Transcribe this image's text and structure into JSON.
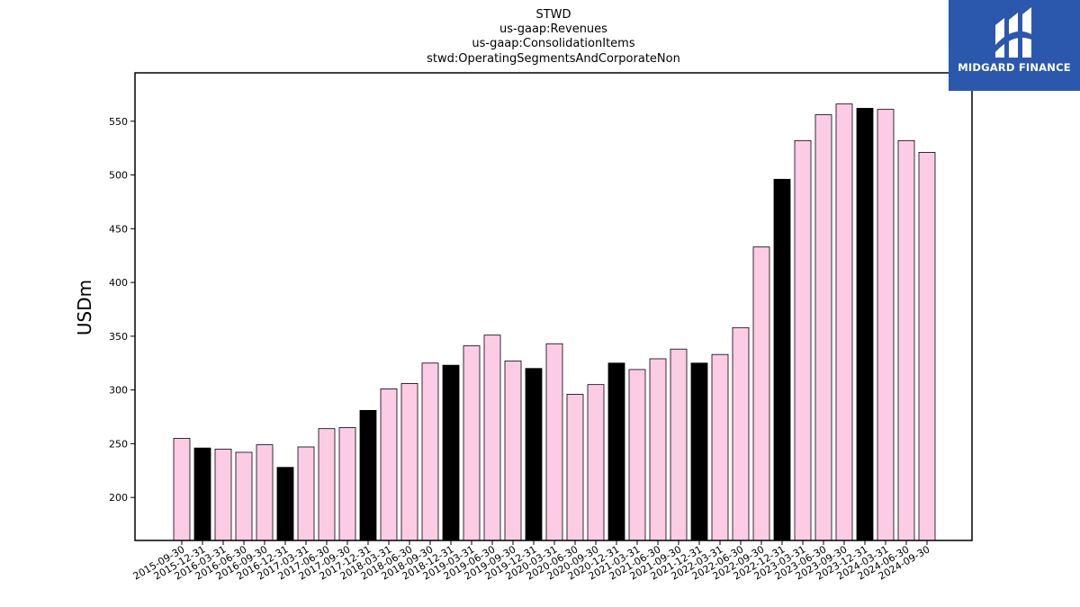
{
  "brand": {
    "name": "MIDGARD FINANCE",
    "logo_color": "#2b58ad"
  },
  "colors": {
    "regular_bar": "#fccce5",
    "highlight_bar": "#000000",
    "bar_edge": "#000000"
  },
  "chart_data": {
    "type": "bar",
    "title_lines": [
      "STWD",
      "us-gaap:Revenues",
      "us-gaap:ConsolidationItems",
      "stwd:OperatingSegmentsAndCorporateNon"
    ],
    "xlabel": "",
    "ylabel": "USDm",
    "ylim": [
      160,
      595
    ],
    "yticks": [
      200,
      250,
      300,
      350,
      400,
      450,
      500,
      550
    ],
    "grid": false,
    "categories": [
      "2015-09-30",
      "2015-12-31",
      "2016-03-31",
      "2016-06-30",
      "2016-09-30",
      "2016-12-31",
      "2017-03-31",
      "2017-06-30",
      "2017-09-30",
      "2017-12-31",
      "2018-03-31",
      "2018-06-30",
      "2018-09-30",
      "2018-12-31",
      "2019-03-31",
      "2019-06-30",
      "2019-09-30",
      "2019-12-31",
      "2020-03-31",
      "2020-06-30",
      "2020-09-30",
      "2020-12-31",
      "2021-03-31",
      "2021-06-30",
      "2021-09-30",
      "2021-12-31",
      "2022-03-31",
      "2022-06-30",
      "2022-09-30",
      "2022-12-31",
      "2023-03-31",
      "2023-06-30",
      "2023-09-30",
      "2023-12-31",
      "2024-03-31",
      "2024-06-30",
      "2024-09-30"
    ],
    "values": [
      255,
      246,
      245,
      242,
      249,
      228,
      247,
      264,
      265,
      281,
      301,
      306,
      325,
      323,
      341,
      351,
      327,
      320,
      343,
      296,
      305,
      325,
      319,
      329,
      338,
      325,
      333,
      358,
      433,
      496,
      532,
      556,
      566,
      562,
      561,
      532,
      521
    ],
    "highlight_categories": [
      "2015-12-31",
      "2016-12-31",
      "2017-12-31",
      "2018-12-31",
      "2019-12-31",
      "2020-12-31",
      "2021-12-31",
      "2022-12-31",
      "2023-12-31"
    ]
  }
}
